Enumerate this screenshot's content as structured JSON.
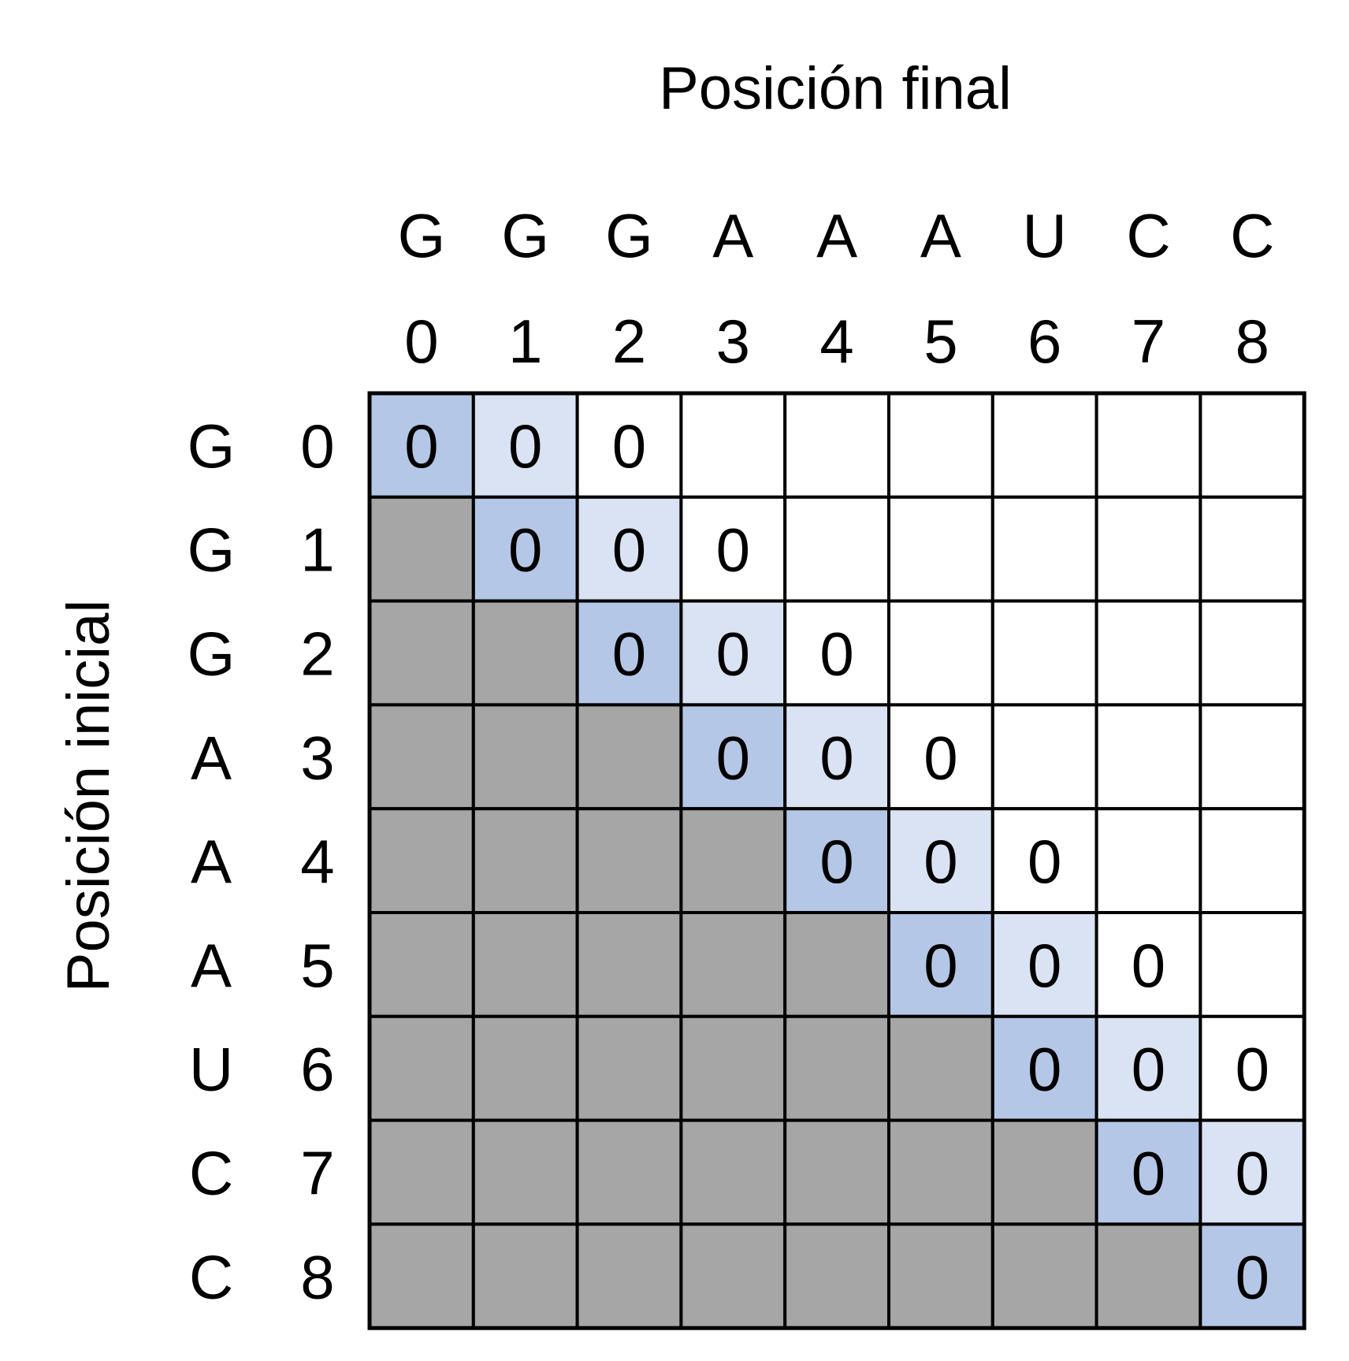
{
  "title_top": "Posición final",
  "title_left": "Posición inicial",
  "sequence": [
    "G",
    "G",
    "G",
    "A",
    "A",
    "A",
    "U",
    "C",
    "C"
  ],
  "indices": [
    "0",
    "1",
    "2",
    "3",
    "4",
    "5",
    "6",
    "7",
    "8"
  ],
  "cell_values": [
    [
      "0",
      "0",
      "0",
      "",
      "",
      "",
      "",
      "",
      ""
    ],
    [
      "",
      "0",
      "0",
      "0",
      "",
      "",
      "",
      "",
      ""
    ],
    [
      "",
      "",
      "0",
      "0",
      "0",
      "",
      "",
      "",
      ""
    ],
    [
      "",
      "",
      "",
      "0",
      "0",
      "0",
      "",
      "",
      ""
    ],
    [
      "",
      "",
      "",
      "",
      "0",
      "0",
      "0",
      "",
      ""
    ],
    [
      "",
      "",
      "",
      "",
      "",
      "0",
      "0",
      "0",
      ""
    ],
    [
      "",
      "",
      "",
      "",
      "",
      "",
      "0",
      "0",
      "0"
    ],
    [
      "",
      "",
      "",
      "",
      "",
      "",
      "",
      "0",
      "0"
    ],
    [
      "",
      "",
      "",
      "",
      "",
      "",
      "",
      "",
      "0"
    ]
  ],
  "colors": {
    "diagonal": "#b4c7e7",
    "near_diagonal": "#dae3f3",
    "lower_triangle": "#a6a6a6",
    "empty": "#ffffff",
    "grid": "#000000"
  }
}
